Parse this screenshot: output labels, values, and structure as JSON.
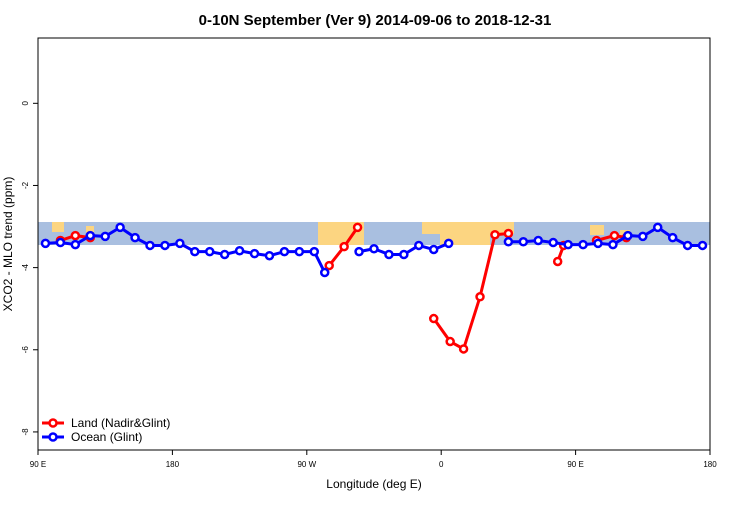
{
  "chart_data": {
    "type": "line",
    "title": "0-10N September (Ver 9)   2014-09-06 to 2018-12-31",
    "x_label": "Longitude (deg E)",
    "y_label": "XCO2 - MLO trend (ppm)",
    "xlim": [
      90,
      540
    ],
    "xticks": [
      {
        "value": 90,
        "label": "90 E"
      },
      {
        "value": 180,
        "label": "180"
      },
      {
        "value": 270,
        "label": "90 W"
      },
      {
        "value": 360,
        "label": "0"
      },
      {
        "value": 450,
        "label": "90 E"
      },
      {
        "value": 540,
        "label": "180"
      }
    ],
    "ylim": [
      -8.44,
      1.59
    ],
    "yticks": [
      0,
      -2,
      -4,
      -6,
      -8
    ],
    "legend": "bottom-left",
    "series": [
      {
        "name": "Land (Nadir&Glint)",
        "color": "#ff0000",
        "x": [
          105,
          115,
          125,
          135,
          285,
          295,
          304,
          330,
          355,
          366,
          375,
          386,
          396,
          405,
          420,
          438,
          442,
          455,
          464,
          476,
          484
        ],
        "values": [
          -3.34,
          -3.22,
          -3.27,
          null,
          -3.95,
          -3.49,
          -3.02,
          null,
          -5.24,
          -5.8,
          -5.98,
          -4.71,
          -3.2,
          -3.17,
          null,
          -3.85,
          -3.46,
          null,
          -3.34,
          -3.22,
          -3.27
        ]
      },
      {
        "name": "Ocean (Glint)",
        "color": "#0000ff",
        "x": [
          95,
          105,
          115,
          125,
          135,
          145,
          155,
          165,
          175,
          185,
          195,
          205,
          215,
          225,
          235,
          245,
          255,
          265,
          275,
          282,
          295,
          305,
          315,
          325,
          335,
          345,
          355,
          365,
          385,
          405,
          415,
          425,
          435,
          445,
          455,
          465,
          475,
          485,
          495,
          505,
          515,
          525,
          535
        ],
        "values": [
          -3.41,
          -3.39,
          -3.44,
          -3.22,
          -3.24,
          -3.02,
          -3.27,
          -3.46,
          -3.46,
          -3.41,
          -3.61,
          -3.61,
          -3.68,
          -3.59,
          -3.66,
          -3.71,
          -3.61,
          -3.61,
          -3.61,
          -4.12,
          null,
          -3.61,
          -3.54,
          -3.68,
          -3.68,
          -3.46,
          -3.56,
          -3.41,
          null,
          -3.37,
          -3.37,
          -3.34,
          -3.39,
          -3.44,
          -3.44,
          -3.41,
          -3.44,
          -3.22,
          -3.24,
          -3.02,
          -3.27,
          -3.46,
          -3.46
        ]
      }
    ]
  }
}
